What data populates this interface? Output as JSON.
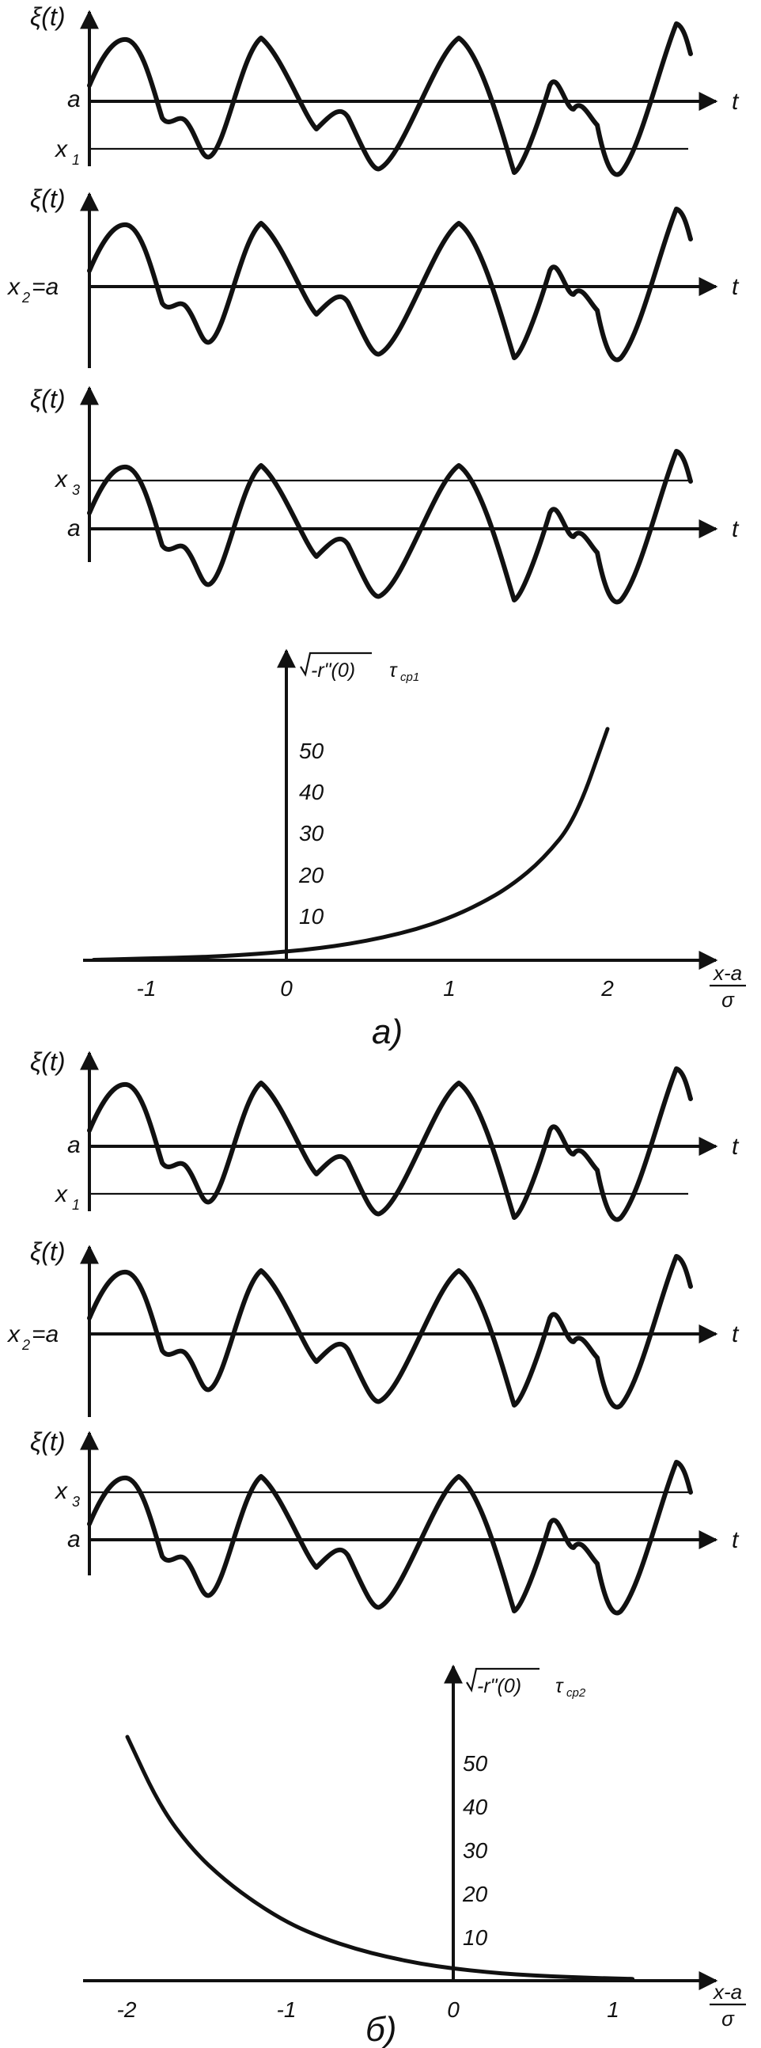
{
  "part_a": {
    "caption": "а)",
    "waves": [
      {
        "ylabel": "ξ(t)",
        "level_labels": [
          "a",
          "x",
          "1"
        ],
        "t_label": "t"
      },
      {
        "ylabel": "ξ(t)",
        "level_labels": [
          "x",
          "2",
          "=a"
        ],
        "t_label": "t"
      },
      {
        "ylabel": "ξ(t)",
        "level_labels": [
          "x",
          "3",
          "a"
        ],
        "t_label": "t"
      }
    ],
    "graph": {
      "ylabel_root": "-r\"(0)",
      "ylabel_tau": "τ",
      "ylabel_sub": "ср1",
      "xlabel_num": "x-a",
      "xlabel_den": "σ",
      "xticks": [
        "-1",
        "0",
        "1",
        "2"
      ],
      "yticks": [
        "10",
        "20",
        "30",
        "40",
        "50"
      ]
    }
  },
  "part_b": {
    "caption": "б)",
    "waves": [
      {
        "ylabel": "ξ(t)",
        "level_labels": [
          "a",
          "x",
          "1"
        ],
        "t_label": "t"
      },
      {
        "ylabel": "ξ(t)",
        "level_labels": [
          "x",
          "2",
          "=a"
        ],
        "t_label": "t"
      },
      {
        "ylabel": "ξ(t)",
        "level_labels": [
          "x",
          "3",
          "a"
        ],
        "t_label": "t"
      }
    ],
    "graph": {
      "ylabel_root": "-r\"(0)",
      "ylabel_tau": "τ",
      "ylabel_sub": "ср2",
      "xlabel_num": "x-a",
      "xlabel_den": "σ",
      "xticks": [
        "-2",
        "-1",
        "0",
        "1"
      ],
      "yticks": [
        "10",
        "20",
        "30",
        "40",
        "50"
      ]
    }
  },
  "chart_data": [
    {
      "type": "line",
      "x": [
        -1.2,
        -1.0,
        -0.8,
        -0.6,
        -0.4,
        -0.2,
        0.0,
        0.2,
        0.4,
        0.6,
        0.8,
        1.0,
        1.2,
        1.4,
        1.6,
        1.8,
        2.0
      ],
      "values": [
        0.1,
        0.3,
        0.5,
        0.7,
        1.0,
        1.5,
        2.1,
        2.9,
        4.0,
        5.5,
        7.4,
        10.0,
        13.5,
        18.0,
        24.5,
        34.0,
        56.0
      ],
      "xlabel": "x-a / σ",
      "ylabel": "√-r\"(0) τср1",
      "xlim": [
        -1.2,
        2.4
      ],
      "ylim": [
        0,
        55
      ]
    },
    {
      "type": "line",
      "x": [
        -2.0,
        -1.8,
        -1.6,
        -1.4,
        -1.2,
        -1.0,
        -0.8,
        -0.6,
        -0.4,
        -0.2,
        0.0,
        0.2,
        0.4,
        0.6,
        0.8,
        1.0,
        1.1
      ],
      "values": [
        56.0,
        40.0,
        30.0,
        23.0,
        17.5,
        13.0,
        9.8,
        7.3,
        5.4,
        3.9,
        2.8,
        2.0,
        1.4,
        1.0,
        0.7,
        0.5,
        0.4
      ],
      "xlabel": "x-a / σ",
      "ylabel": "√-r\"(0) τср2",
      "xlim": [
        -2.2,
        1.2
      ],
      "ylim": [
        0,
        55
      ]
    }
  ]
}
